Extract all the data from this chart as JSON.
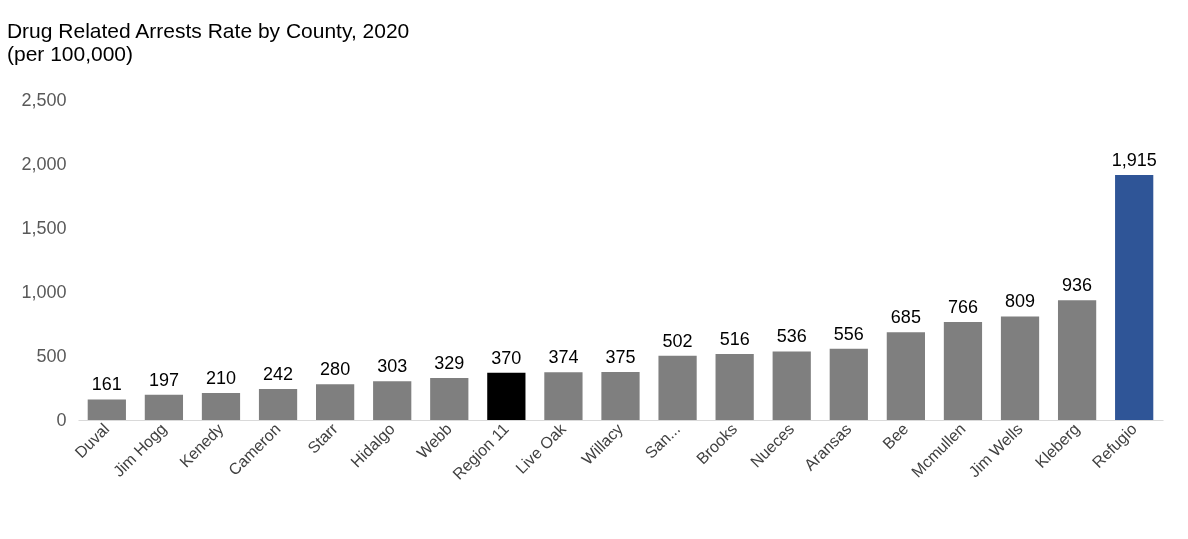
{
  "chart_data": {
    "type": "bar",
    "title": "Drug Related Arrests Rate by County, 2020",
    "subtitle": "(per 100,000)",
    "categories": [
      "Duval",
      "Jim Hogg",
      "Kenedy",
      "Cameron",
      "Starr",
      "Hidalgo",
      "Webb",
      "Region 11",
      "Live Oak",
      "Willacy",
      "San...",
      "Brooks",
      "Nueces",
      "Aransas",
      "Bee",
      "Mcmullen",
      "Jim Wells",
      "Kleberg",
      "Refugio"
    ],
    "values": [
      161,
      197,
      210,
      242,
      280,
      303,
      329,
      370,
      374,
      375,
      502,
      516,
      536,
      556,
      685,
      766,
      809,
      936,
      1915
    ],
    "colors": [
      "#7f7f7f",
      "#7f7f7f",
      "#7f7f7f",
      "#7f7f7f",
      "#7f7f7f",
      "#7f7f7f",
      "#7f7f7f",
      "#000000",
      "#7f7f7f",
      "#7f7f7f",
      "#7f7f7f",
      "#7f7f7f",
      "#7f7f7f",
      "#7f7f7f",
      "#7f7f7f",
      "#7f7f7f",
      "#7f7f7f",
      "#7f7f7f",
      "#2f5597"
    ],
    "value_labels": [
      "161",
      "197",
      "210",
      "242",
      "280",
      "303",
      "329",
      "370",
      "374",
      "375",
      "502",
      "516",
      "536",
      "556",
      "685",
      "766",
      "809",
      "936",
      "1,915"
    ],
    "ylim": [
      0,
      2500
    ],
    "yticks": [
      0,
      500,
      {
        "value": 1000,
        "label": "1,000"
      },
      {
        "value": 1500,
        "label": "1,500"
      },
      {
        "value": 2000,
        "label": "2,000"
      },
      {
        "value": 2500,
        "label": "2,500"
      }
    ],
    "grid": false
  }
}
